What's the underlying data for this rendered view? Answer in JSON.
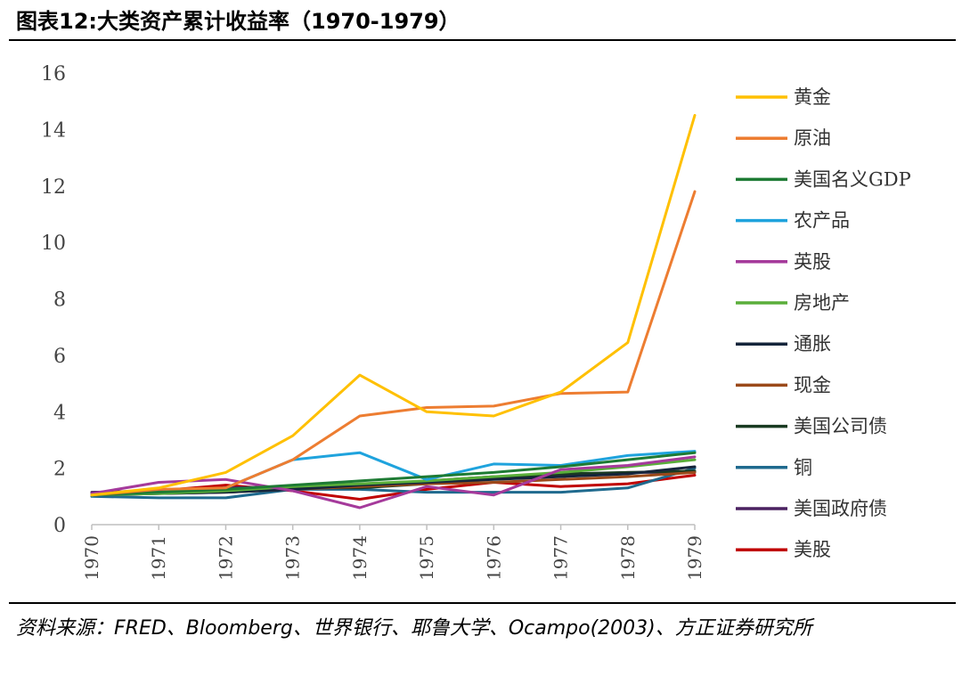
{
  "title": "图表12:大类资产累计收益率（1970-1979）",
  "source": "资料来源：FRED、Bloomberg、世界银行、耶鲁大学、Ocampo(2003)、方正证券研究所",
  "chart_data": {
    "type": "line",
    "x": [
      "1970",
      "1971",
      "1972",
      "1973",
      "1974",
      "1975",
      "1976",
      "1977",
      "1978",
      "1979"
    ],
    "ylim": [
      0,
      16
    ],
    "yticks": [
      "0",
      "2",
      "4",
      "6",
      "8",
      "10",
      "12",
      "14",
      "16"
    ],
    "grid": false,
    "legend_position": "right",
    "series": [
      {
        "name": "黄金",
        "color": "#FFC000",
        "values": [
          1.05,
          1.3,
          1.85,
          3.15,
          5.3,
          4.0,
          3.85,
          4.7,
          6.45,
          14.5
        ]
      },
      {
        "name": "原油",
        "color": "#ED7D31",
        "values": [
          1.05,
          1.25,
          1.3,
          2.3,
          3.85,
          4.15,
          4.2,
          4.65,
          4.7,
          11.8
        ]
      },
      {
        "name": "美国名义GDP",
        "color": "#1E7B34",
        "values": [
          1.05,
          1.15,
          1.25,
          1.4,
          1.55,
          1.7,
          1.85,
          2.05,
          2.3,
          2.55
        ]
      },
      {
        "name": "农产品",
        "color": "#1FA3DD",
        "values": [
          1.05,
          1.15,
          1.3,
          2.3,
          2.55,
          1.6,
          2.15,
          2.1,
          2.45,
          2.6
        ]
      },
      {
        "name": "英股",
        "color": "#A53A9B",
        "values": [
          1.1,
          1.5,
          1.6,
          1.2,
          0.6,
          1.35,
          1.05,
          1.95,
          2.1,
          2.4
        ]
      },
      {
        "name": "房地产",
        "color": "#5AAE3A",
        "values": [
          1.05,
          1.1,
          1.2,
          1.35,
          1.45,
          1.55,
          1.7,
          1.85,
          2.05,
          2.3
        ]
      },
      {
        "name": "通胀",
        "color": "#15253B",
        "values": [
          1.05,
          1.1,
          1.15,
          1.25,
          1.4,
          1.5,
          1.6,
          1.7,
          1.8,
          2.05
        ]
      },
      {
        "name": "现金",
        "color": "#9B4A1A",
        "values": [
          1.05,
          1.1,
          1.15,
          1.25,
          1.35,
          1.45,
          1.5,
          1.6,
          1.7,
          1.85
        ]
      },
      {
        "name": "美国公司债",
        "color": "#1A3B22",
        "values": [
          1.05,
          1.15,
          1.25,
          1.3,
          1.3,
          1.45,
          1.65,
          1.8,
          1.85,
          1.9
        ]
      },
      {
        "name": "铜",
        "color": "#1F6A8E",
        "values": [
          1.0,
          0.95,
          0.95,
          1.25,
          1.25,
          1.15,
          1.15,
          1.15,
          1.3,
          2.0
        ]
      },
      {
        "name": "美国政府债",
        "color": "#4B2261",
        "values": [
          1.15,
          1.2,
          1.3,
          1.35,
          1.4,
          1.55,
          1.7,
          1.75,
          1.85,
          1.85
        ]
      },
      {
        "name": "美股",
        "color": "#C00000",
        "values": [
          1.05,
          1.2,
          1.4,
          1.2,
          0.9,
          1.25,
          1.5,
          1.35,
          1.45,
          1.75
        ]
      }
    ]
  }
}
